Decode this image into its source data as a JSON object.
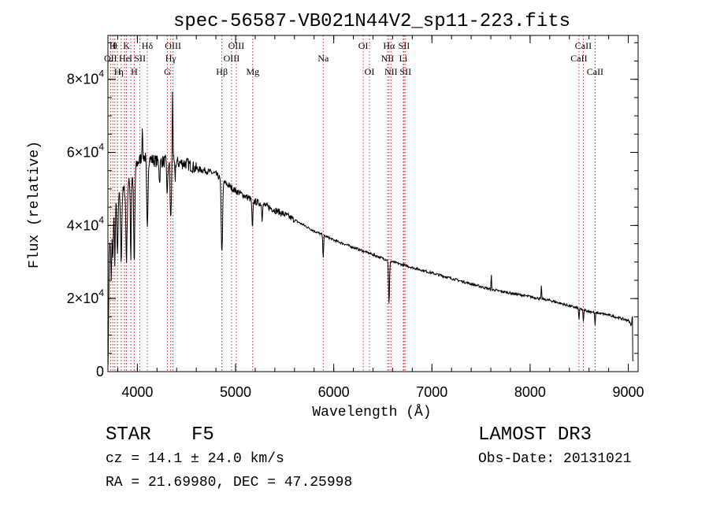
{
  "chart_data": {
    "type": "line",
    "title": "spec-56587-VB021N44V2_sp11-223.fits",
    "xlabel": "Wavelength (Å)",
    "ylabel": "Flux (relative)",
    "xlim": [
      3700,
      9100
    ],
    "ylim": [
      0,
      92000
    ],
    "x_ticks": [
      {
        "value": 4000,
        "label": "4000"
      },
      {
        "value": 5000,
        "label": "5000"
      },
      {
        "value": 6000,
        "label": "6000"
      },
      {
        "value": 7000,
        "label": "7000"
      },
      {
        "value": 8000,
        "label": "8000"
      },
      {
        "value": 9000,
        "label": "9000"
      }
    ],
    "x_minor_step": 200,
    "y_ticks": [
      {
        "value": 0,
        "mantissa": "0",
        "exponent": ""
      },
      {
        "value": 20000,
        "mantissa": "2×10",
        "exponent": "4"
      },
      {
        "value": 40000,
        "mantissa": "4×10",
        "exponent": "4"
      },
      {
        "value": 60000,
        "mantissa": "6×10",
        "exponent": "4"
      },
      {
        "value": 80000,
        "mantissa": "8×10",
        "exponent": "4"
      }
    ],
    "y_minor_step": 5000,
    "continuum": [
      [
        3700,
        30000
      ],
      [
        3750,
        42000
      ],
      [
        3800,
        47000
      ],
      [
        3850,
        49000
      ],
      [
        3900,
        51000
      ],
      [
        3950,
        53000
      ],
      [
        4000,
        57000
      ],
      [
        4050,
        59000
      ],
      [
        4100,
        58500
      ],
      [
        4150,
        58000
      ],
      [
        4200,
        57500
      ],
      [
        4300,
        57500
      ],
      [
        4400,
        57200
      ],
      [
        4500,
        57000
      ],
      [
        4600,
        55500
      ],
      [
        4700,
        55000
      ],
      [
        4800,
        54000
      ],
      [
        4900,
        51500
      ],
      [
        5000,
        49500
      ],
      [
        5100,
        48000
      ],
      [
        5200,
        46500
      ],
      [
        5300,
        45500
      ],
      [
        5400,
        44200
      ],
      [
        5500,
        43000
      ],
      [
        5600,
        41500
      ],
      [
        5800,
        38500
      ],
      [
        6000,
        36000
      ],
      [
        6200,
        34000
      ],
      [
        6400,
        32000
      ],
      [
        6600,
        30000
      ],
      [
        6800,
        28500
      ],
      [
        7000,
        27000
      ],
      [
        7200,
        25500
      ],
      [
        7400,
        24000
      ],
      [
        7600,
        22500
      ],
      [
        7800,
        21500
      ],
      [
        8000,
        20500
      ],
      [
        8200,
        19500
      ],
      [
        8400,
        18000
      ],
      [
        8600,
        16500
      ],
      [
        8800,
        15500
      ],
      [
        9000,
        14000
      ],
      [
        9050,
        12000
      ]
    ],
    "absorption_features": [
      {
        "center": 3734,
        "depth": 14000,
        "width": 6
      },
      {
        "center": 3750,
        "depth": 12000,
        "width": 6
      },
      {
        "center": 3771,
        "depth": 14000,
        "width": 6
      },
      {
        "center": 3798,
        "depth": 16000,
        "width": 7
      },
      {
        "center": 3835,
        "depth": 18000,
        "width": 8
      },
      {
        "center": 3889,
        "depth": 20000,
        "width": 9
      },
      {
        "center": 3933,
        "depth": 22000,
        "width": 6
      },
      {
        "center": 3968,
        "depth": 26000,
        "width": 8
      },
      {
        "center": 4101,
        "depth": 20000,
        "width": 9
      },
      {
        "center": 4226,
        "depth": 6000,
        "width": 6
      },
      {
        "center": 4305,
        "depth": 9000,
        "width": 8
      },
      {
        "center": 4340,
        "depth": 16000,
        "width": 9
      },
      {
        "center": 4384,
        "depth": 5000,
        "width": 5
      },
      {
        "center": 4861,
        "depth": 20000,
        "width": 10
      },
      {
        "center": 5172,
        "depth": 8000,
        "width": 7
      },
      {
        "center": 5270,
        "depth": 4000,
        "width": 5
      },
      {
        "center": 5893,
        "depth": 6000,
        "width": 6
      },
      {
        "center": 6563,
        "depth": 12000,
        "width": 7
      },
      {
        "center": 8498,
        "depth": 3000,
        "width": 5
      },
      {
        "center": 8542,
        "depth": 3500,
        "width": 5
      },
      {
        "center": 8662,
        "depth": 3500,
        "width": 5
      }
    ],
    "emission_features": [
      {
        "center": 4050,
        "height": 9000,
        "width": 4
      },
      {
        "center": 4359,
        "height": 22000,
        "width": 4
      },
      {
        "center": 7605,
        "height": 4000,
        "width": 4
      },
      {
        "center": 8115,
        "height": 3500,
        "width": 4
      },
      {
        "center": 9040,
        "height": 3000,
        "width": 4
      }
    ],
    "lines": [
      {
        "wavelength": 3727,
        "label": "OII",
        "row": 2
      },
      {
        "wavelength": 3750,
        "label": "H",
        "row": 1
      },
      {
        "wavelength": 3771,
        "label": "θ",
        "row": 1
      },
      {
        "wavelength": 3798,
        "label": "H",
        "row": 3
      },
      {
        "wavelength": 3835,
        "label": "η",
        "row": 3
      },
      {
        "wavelength": 3869,
        "label": "He",
        "row": 2
      },
      {
        "wavelength": 3889,
        "label": "K",
        "row": 1
      },
      {
        "wavelength": 3933,
        "label": "I",
        "row": 2
      },
      {
        "wavelength": 3968,
        "label": "H",
        "row": 3
      },
      {
        "wavelength": 4026,
        "label": "SII",
        "row": 2
      },
      {
        "wavelength": 4101,
        "label": "Hδ",
        "row": 1
      },
      {
        "wavelength": 4305,
        "label": "G",
        "row": 3
      },
      {
        "wavelength": 4340,
        "label": "Hγ",
        "row": 2
      },
      {
        "wavelength": 4363,
        "label": "OIII",
        "row": 1
      },
      {
        "wavelength": 4861,
        "label": "Hβ",
        "row": 3
      },
      {
        "wavelength": 4959,
        "label": "OIII",
        "row": 2
      },
      {
        "wavelength": 5007,
        "label": "OIII",
        "row": 1
      },
      {
        "wavelength": 5175,
        "label": "Mg",
        "row": 3
      },
      {
        "wavelength": 5893,
        "label": "Na",
        "row": 2
      },
      {
        "wavelength": 6300,
        "label": "OI",
        "row": 1
      },
      {
        "wavelength": 6364,
        "label": "OI",
        "row": 3
      },
      {
        "wavelength": 6548,
        "label": "NII",
        "row": 2
      },
      {
        "wavelength": 6563,
        "label": "Hα",
        "row": 1
      },
      {
        "wavelength": 6583,
        "label": "NII",
        "row": 3
      },
      {
        "wavelength": 6708,
        "label": "Li",
        "row": 2
      },
      {
        "wavelength": 6716,
        "label": "SII",
        "row": 1
      },
      {
        "wavelength": 6731,
        "label": "SII",
        "row": 3
      },
      {
        "wavelength": 8498,
        "label": "CaII",
        "row": 2
      },
      {
        "wavelength": 8542,
        "label": "CaII",
        "row": 1
      },
      {
        "wavelength": 8662,
        "label": "CaII",
        "row": 3
      }
    ],
    "line_color": "#cc2222",
    "spectrum_color": "#000000"
  },
  "info": {
    "object_class": "STAR",
    "subclass": "F5",
    "survey": "LAMOST DR3",
    "redshift": "cz =  14.1 ± 24.0 km/s",
    "obs_date": "Obs-Date: 20131021",
    "coordinates": "RA =  21.69980, DEC =  47.25998"
  }
}
